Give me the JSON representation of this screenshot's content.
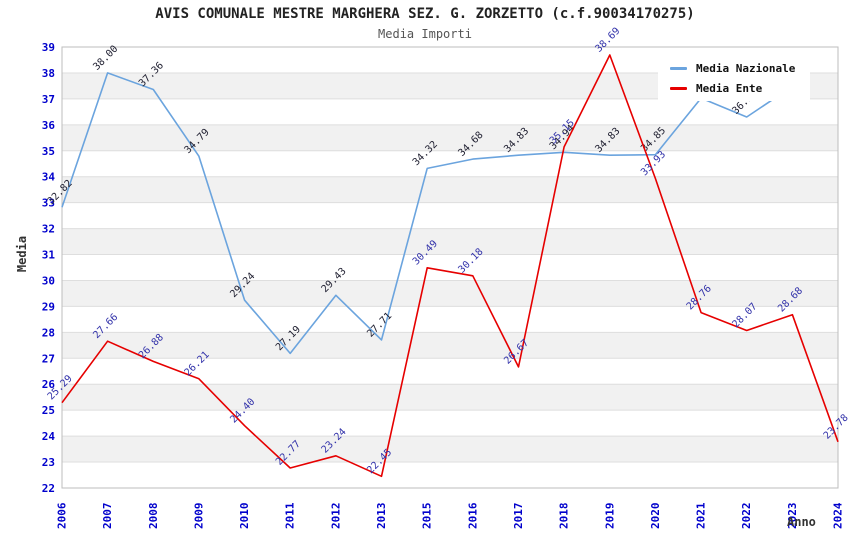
{
  "title": "AVIS COMUNALE MESTRE MARGHERA SEZ. G. ZORZETTO (c.f.90034170275)",
  "subtitle": "Media Importi",
  "axes": {
    "y_label": "Media",
    "x_label": "Anno",
    "y_ticks": [
      22,
      23,
      24,
      25,
      26,
      27,
      28,
      29,
      30,
      31,
      32,
      33,
      34,
      35,
      36,
      37,
      38,
      39
    ],
    "tick_color": "#0000cc",
    "grid_color": "#dedede",
    "band_color": "#f1f1f1",
    "frame_color": "#bdbdbd"
  },
  "legend": [
    {
      "label": "Media Nazionale",
      "color": "#6ba4de"
    },
    {
      "label": "Media Ente",
      "color": "#e60000"
    }
  ],
  "chart_data": {
    "type": "line",
    "categories": [
      "2006",
      "2007",
      "2008",
      "2009",
      "2010",
      "2011",
      "2012",
      "2013",
      "2015",
      "2016",
      "2017",
      "2018",
      "2019",
      "2020",
      "2021",
      "2022",
      "2023",
      "2024"
    ],
    "ylim": [
      22,
      39
    ],
    "grid": "horizontal gridlines with alternating gray bands",
    "legend_position": "top-right inside plot",
    "series": [
      {
        "name": "Media Nazionale",
        "color": "#6ba4de",
        "label_color": "#222233",
        "values": [
          32.82,
          38.0,
          37.36,
          34.79,
          29.24,
          27.19,
          29.43,
          27.71,
          34.32,
          34.68,
          34.83,
          34.94,
          34.83,
          34.85,
          37.03,
          36.3,
          37.48,
          null
        ],
        "labels": [
          "32.82",
          "38.00",
          "37.36",
          "34.79",
          "29.24",
          "27.19",
          "29.43",
          "27.71",
          "34.32",
          "34.68",
          "34.83",
          "34.94",
          "34.83",
          "34.85",
          null,
          "36.30",
          null,
          null
        ]
      },
      {
        "name": "Media Ente",
        "color": "#e60000",
        "label_color": "#3333aa",
        "values": [
          25.29,
          27.66,
          26.88,
          26.21,
          24.4,
          22.77,
          23.24,
          22.45,
          30.49,
          30.18,
          26.67,
          35.15,
          38.69,
          33.93,
          28.76,
          28.07,
          28.68,
          23.78
        ],
        "labels": [
          "25.29",
          "27.66",
          "26.88",
          "26.21",
          "24.40",
          "22.77",
          "23.24",
          "22.45",
          "30.49",
          "30.18",
          "26.67",
          "35.15",
          "38.69",
          "33.93",
          "28.76",
          "28.07",
          "28.68",
          "23.78"
        ]
      }
    ]
  }
}
